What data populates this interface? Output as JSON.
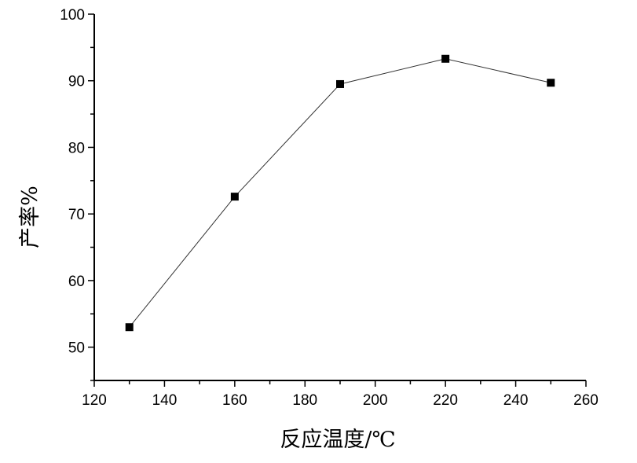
{
  "chart_data": {
    "type": "line",
    "title": "",
    "xlabel": "反应温度/℃",
    "ylabel": "产率%",
    "x": [
      130,
      160,
      190,
      220,
      250
    ],
    "series": [
      {
        "name": "产率",
        "values": [
          53.0,
          72.6,
          89.5,
          93.3,
          89.7
        ],
        "marker": "square",
        "color": "#000000"
      }
    ],
    "xlim": [
      120,
      260
    ],
    "ylim": [
      45,
      100
    ],
    "xticks": [
      120,
      140,
      160,
      180,
      200,
      220,
      240,
      260
    ],
    "yticks": [
      50,
      60,
      70,
      80,
      90,
      100
    ],
    "grid": false,
    "legend": "none"
  }
}
